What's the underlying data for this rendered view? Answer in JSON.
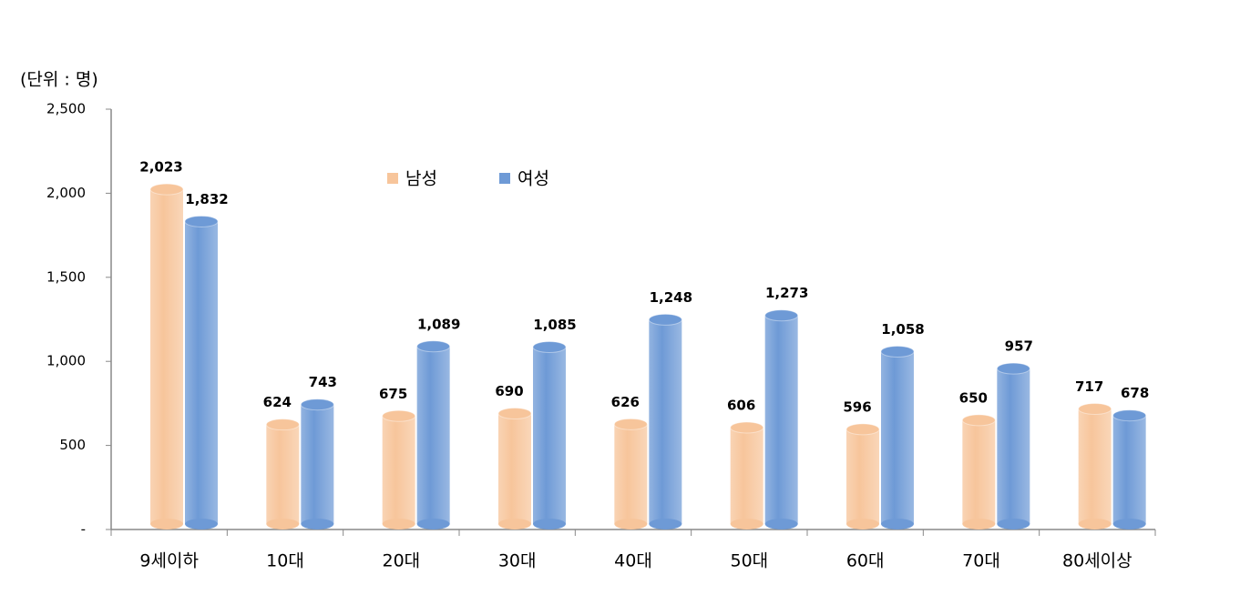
{
  "chart_data": {
    "type": "bar",
    "unit_label": "(단위 : 명)",
    "categories": [
      "9세이하",
      "10대",
      "20대",
      "30대",
      "40대",
      "50대",
      "60대",
      "70대",
      "80세이상"
    ],
    "series": [
      {
        "name": "남성",
        "color": "#f7c59b",
        "values": [
          2023,
          624,
          675,
          690,
          626,
          606,
          596,
          650,
          717
        ],
        "value_labels": [
          "2,023",
          "624",
          "675",
          "690",
          "626",
          "606",
          "596",
          "650",
          "717"
        ]
      },
      {
        "name": "여성",
        "color": "#6e9ad6",
        "values": [
          1832,
          743,
          1089,
          1085,
          1248,
          1273,
          1058,
          957,
          678
        ],
        "value_labels": [
          "1,832",
          "743",
          "1,089",
          "1,085",
          "1,248",
          "1,273",
          "1,058",
          "957",
          "678"
        ]
      }
    ],
    "ylim": [
      0,
      2500
    ],
    "yticks": [
      {
        "value": 0,
        "label": "-"
      },
      500,
      {
        "value": 1000,
        "label": "1,000"
      },
      {
        "value": 1500,
        "label": "1,500"
      },
      {
        "value": 2000,
        "label": "2,000"
      },
      {
        "value": 2500,
        "label": "2,500"
      }
    ],
    "legend": "top"
  }
}
